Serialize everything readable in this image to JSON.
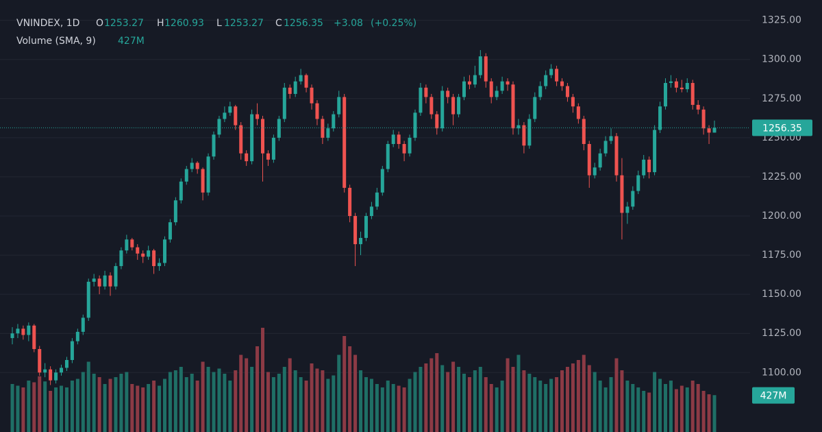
{
  "chart_data": {
    "type": "candlestick",
    "symbol": "VNINDEX, 1D",
    "ohlc_labels": [
      "O",
      "H",
      "L",
      "C"
    ],
    "ohlc_values": [
      1253.27,
      1260.93,
      1253.27,
      1256.35
    ],
    "change": {
      "value": 3.08,
      "label": "+3.08"
    },
    "change_pct": {
      "value": 0.25,
      "label": "(+0.25%)"
    },
    "volume_label": "Volume (SMA, 9)",
    "volume_sma": {
      "value": 427,
      "label": "427M"
    },
    "last_price": 1256.35,
    "up_color": "#26a69a",
    "down_color": "#ef5350",
    "volume_up_color": "#1f6f66",
    "volume_down_color": "#8c3a45",
    "grid": true,
    "ylim": [
      1062,
      1338
    ],
    "yticks": [
      {
        "value": 1325,
        "label": "1325.00"
      },
      {
        "value": 1300,
        "label": "1300.00"
      },
      {
        "value": 1275,
        "label": "1275.00"
      },
      {
        "value": 1250,
        "label": "1250.00"
      },
      {
        "value": 1225,
        "label": "1225.00"
      },
      {
        "value": 1200,
        "label": "1200.00"
      },
      {
        "value": 1175,
        "label": "1175.00"
      },
      {
        "value": 1150,
        "label": "1150.00"
      },
      {
        "value": 1125,
        "label": "1125.00"
      },
      {
        "value": 1100,
        "label": "1100.00"
      }
    ],
    "volume_ylim": [
      0,
      1400
    ],
    "candles": [
      [
        1122,
        1129,
        1118,
        1125
      ],
      [
        1125,
        1131,
        1122,
        1128
      ],
      [
        1128,
        1130,
        1121,
        1124
      ],
      [
        1124,
        1132,
        1120,
        1130
      ],
      [
        1130,
        1131,
        1113,
        1115
      ],
      [
        1115,
        1117,
        1098,
        1100
      ],
      [
        1100,
        1106,
        1097,
        1102
      ],
      [
        1102,
        1104,
        1092,
        1095
      ],
      [
        1095,
        1102,
        1093,
        1100
      ],
      [
        1100,
        1105,
        1098,
        1103
      ],
      [
        1103,
        1110,
        1101,
        1108
      ],
      [
        1108,
        1122,
        1106,
        1120
      ],
      [
        1120,
        1128,
        1118,
        1126
      ],
      [
        1126,
        1137,
        1124,
        1135
      ],
      [
        1135,
        1160,
        1133,
        1158
      ],
      [
        1158,
        1163,
        1155,
        1160
      ],
      [
        1160,
        1162,
        1150,
        1155
      ],
      [
        1155,
        1165,
        1153,
        1162
      ],
      [
        1162,
        1164,
        1149,
        1155
      ],
      [
        1155,
        1170,
        1153,
        1168
      ],
      [
        1168,
        1180,
        1166,
        1178
      ],
      [
        1178,
        1188,
        1176,
        1185
      ],
      [
        1185,
        1186,
        1178,
        1180
      ],
      [
        1180,
        1182,
        1172,
        1176
      ],
      [
        1176,
        1178,
        1170,
        1174
      ],
      [
        1174,
        1181,
        1172,
        1178
      ],
      [
        1178,
        1179,
        1163,
        1168
      ],
      [
        1168,
        1173,
        1165,
        1170
      ],
      [
        1170,
        1187,
        1168,
        1185
      ],
      [
        1185,
        1198,
        1183,
        1196
      ],
      [
        1196,
        1212,
        1194,
        1210
      ],
      [
        1210,
        1224,
        1208,
        1222
      ],
      [
        1222,
        1232,
        1220,
        1230
      ],
      [
        1230,
        1237,
        1228,
        1234
      ],
      [
        1234,
        1235,
        1227,
        1230
      ],
      [
        1230,
        1231,
        1210,
        1215
      ],
      [
        1215,
        1240,
        1213,
        1238
      ],
      [
        1238,
        1254,
        1236,
        1252
      ],
      [
        1252,
        1264,
        1250,
        1262
      ],
      [
        1262,
        1270,
        1260,
        1266
      ],
      [
        1266,
        1273,
        1264,
        1270
      ],
      [
        1270,
        1271,
        1255,
        1258
      ],
      [
        1258,
        1260,
        1236,
        1240
      ],
      [
        1240,
        1242,
        1232,
        1235
      ],
      [
        1235,
        1268,
        1233,
        1265
      ],
      [
        1265,
        1272,
        1258,
        1262
      ],
      [
        1262,
        1264,
        1222,
        1240
      ],
      [
        1240,
        1242,
        1232,
        1236
      ],
      [
        1236,
        1252,
        1234,
        1250
      ],
      [
        1250,
        1264,
        1248,
        1262
      ],
      [
        1262,
        1285,
        1260,
        1282
      ],
      [
        1282,
        1284,
        1275,
        1278
      ],
      [
        1278,
        1289,
        1276,
        1286
      ],
      [
        1286,
        1294,
        1284,
        1290
      ],
      [
        1290,
        1291,
        1279,
        1282
      ],
      [
        1282,
        1284,
        1268,
        1272
      ],
      [
        1272,
        1274,
        1258,
        1262
      ],
      [
        1262,
        1264,
        1246,
        1250
      ],
      [
        1250,
        1259,
        1248,
        1256
      ],
      [
        1256,
        1267,
        1254,
        1265
      ],
      [
        1265,
        1280,
        1263,
        1276
      ],
      [
        1276,
        1278,
        1215,
        1218
      ],
      [
        1218,
        1220,
        1196,
        1200
      ],
      [
        1200,
        1202,
        1168,
        1182
      ],
      [
        1182,
        1190,
        1175,
        1186
      ],
      [
        1186,
        1202,
        1184,
        1200
      ],
      [
        1200,
        1209,
        1198,
        1206
      ],
      [
        1206,
        1218,
        1204,
        1215
      ],
      [
        1215,
        1232,
        1213,
        1230
      ],
      [
        1230,
        1248,
        1228,
        1246
      ],
      [
        1246,
        1255,
        1244,
        1252
      ],
      [
        1252,
        1254,
        1243,
        1246
      ],
      [
        1246,
        1248,
        1235,
        1240
      ],
      [
        1240,
        1252,
        1238,
        1250
      ],
      [
        1250,
        1268,
        1248,
        1266
      ],
      [
        1266,
        1285,
        1264,
        1282
      ],
      [
        1282,
        1284,
        1272,
        1276
      ],
      [
        1276,
        1278,
        1262,
        1265
      ],
      [
        1265,
        1267,
        1252,
        1256
      ],
      [
        1256,
        1283,
        1254,
        1280
      ],
      [
        1280,
        1282,
        1272,
        1276
      ],
      [
        1276,
        1278,
        1258,
        1265
      ],
      [
        1265,
        1278,
        1263,
        1276
      ],
      [
        1276,
        1289,
        1274,
        1286
      ],
      [
        1286,
        1290,
        1281,
        1284
      ],
      [
        1284,
        1296,
        1282,
        1290
      ],
      [
        1290,
        1306,
        1288,
        1302
      ],
      [
        1302,
        1304,
        1282,
        1286
      ],
      [
        1286,
        1288,
        1272,
        1276
      ],
      [
        1276,
        1283,
        1274,
        1280
      ],
      [
        1280,
        1289,
        1278,
        1286
      ],
      [
        1286,
        1288,
        1280,
        1284
      ],
      [
        1284,
        1286,
        1252,
        1256
      ],
      [
        1256,
        1262,
        1252,
        1258
      ],
      [
        1258,
        1260,
        1240,
        1245
      ],
      [
        1245,
        1265,
        1243,
        1262
      ],
      [
        1262,
        1279,
        1260,
        1276
      ],
      [
        1276,
        1286,
        1274,
        1283
      ],
      [
        1283,
        1293,
        1281,
        1290
      ],
      [
        1290,
        1297,
        1288,
        1294
      ],
      [
        1294,
        1296,
        1283,
        1286
      ],
      [
        1286,
        1288,
        1280,
        1283
      ],
      [
        1283,
        1285,
        1273,
        1276
      ],
      [
        1276,
        1278,
        1266,
        1270
      ],
      [
        1270,
        1272,
        1259,
        1262
      ],
      [
        1262,
        1264,
        1242,
        1246
      ],
      [
        1246,
        1248,
        1218,
        1226
      ],
      [
        1226,
        1234,
        1224,
        1231
      ],
      [
        1231,
        1243,
        1229,
        1240
      ],
      [
        1240,
        1251,
        1238,
        1248
      ],
      [
        1248,
        1256,
        1246,
        1251
      ],
      [
        1251,
        1253,
        1222,
        1226
      ],
      [
        1226,
        1237,
        1185,
        1202
      ],
      [
        1202,
        1209,
        1195,
        1206
      ],
      [
        1206,
        1219,
        1204,
        1216
      ],
      [
        1216,
        1229,
        1214,
        1226
      ],
      [
        1226,
        1239,
        1224,
        1236
      ],
      [
        1236,
        1238,
        1224,
        1228
      ],
      [
        1228,
        1258,
        1226,
        1255
      ],
      [
        1255,
        1273,
        1253,
        1270
      ],
      [
        1270,
        1288,
        1268,
        1285
      ],
      [
        1285,
        1290,
        1282,
        1286
      ],
      [
        1286,
        1288,
        1279,
        1282
      ],
      [
        1282,
        1287,
        1279,
        1281
      ],
      [
        1281,
        1288,
        1279,
        1285
      ],
      [
        1285,
        1287,
        1268,
        1271
      ],
      [
        1271,
        1274,
        1265,
        1268
      ],
      [
        1268,
        1270,
        1252,
        1256
      ],
      [
        1256,
        1258,
        1246,
        1253.27
      ],
      [
        1253.27,
        1260.93,
        1253.27,
        1256.35
      ]
    ],
    "volumes": [
      560,
      540,
      520,
      600,
      580,
      650,
      590,
      480,
      520,
      540,
      520,
      600,
      620,
      700,
      820,
      680,
      640,
      560,
      620,
      640,
      680,
      700,
      560,
      540,
      520,
      560,
      600,
      540,
      620,
      700,
      720,
      760,
      640,
      680,
      600,
      820,
      760,
      700,
      740,
      680,
      600,
      720,
      900,
      860,
      760,
      1000,
      1216,
      700,
      640,
      680,
      760,
      860,
      720,
      640,
      600,
      800,
      740,
      720,
      620,
      660,
      900,
      1120,
      1000,
      900,
      720,
      640,
      620,
      560,
      520,
      600,
      560,
      540,
      520,
      620,
      700,
      760,
      800,
      860,
      920,
      780,
      700,
      820,
      760,
      680,
      640,
      720,
      760,
      640,
      560,
      520,
      600,
      860,
      760,
      900,
      720,
      680,
      640,
      600,
      560,
      620,
      640,
      720,
      760,
      800,
      840,
      900,
      780,
      700,
      600,
      520,
      640,
      860,
      720,
      600,
      560,
      520,
      480,
      460,
      700,
      620,
      560,
      600,
      500,
      540,
      520,
      600,
      560,
      480,
      440,
      430
    ]
  }
}
